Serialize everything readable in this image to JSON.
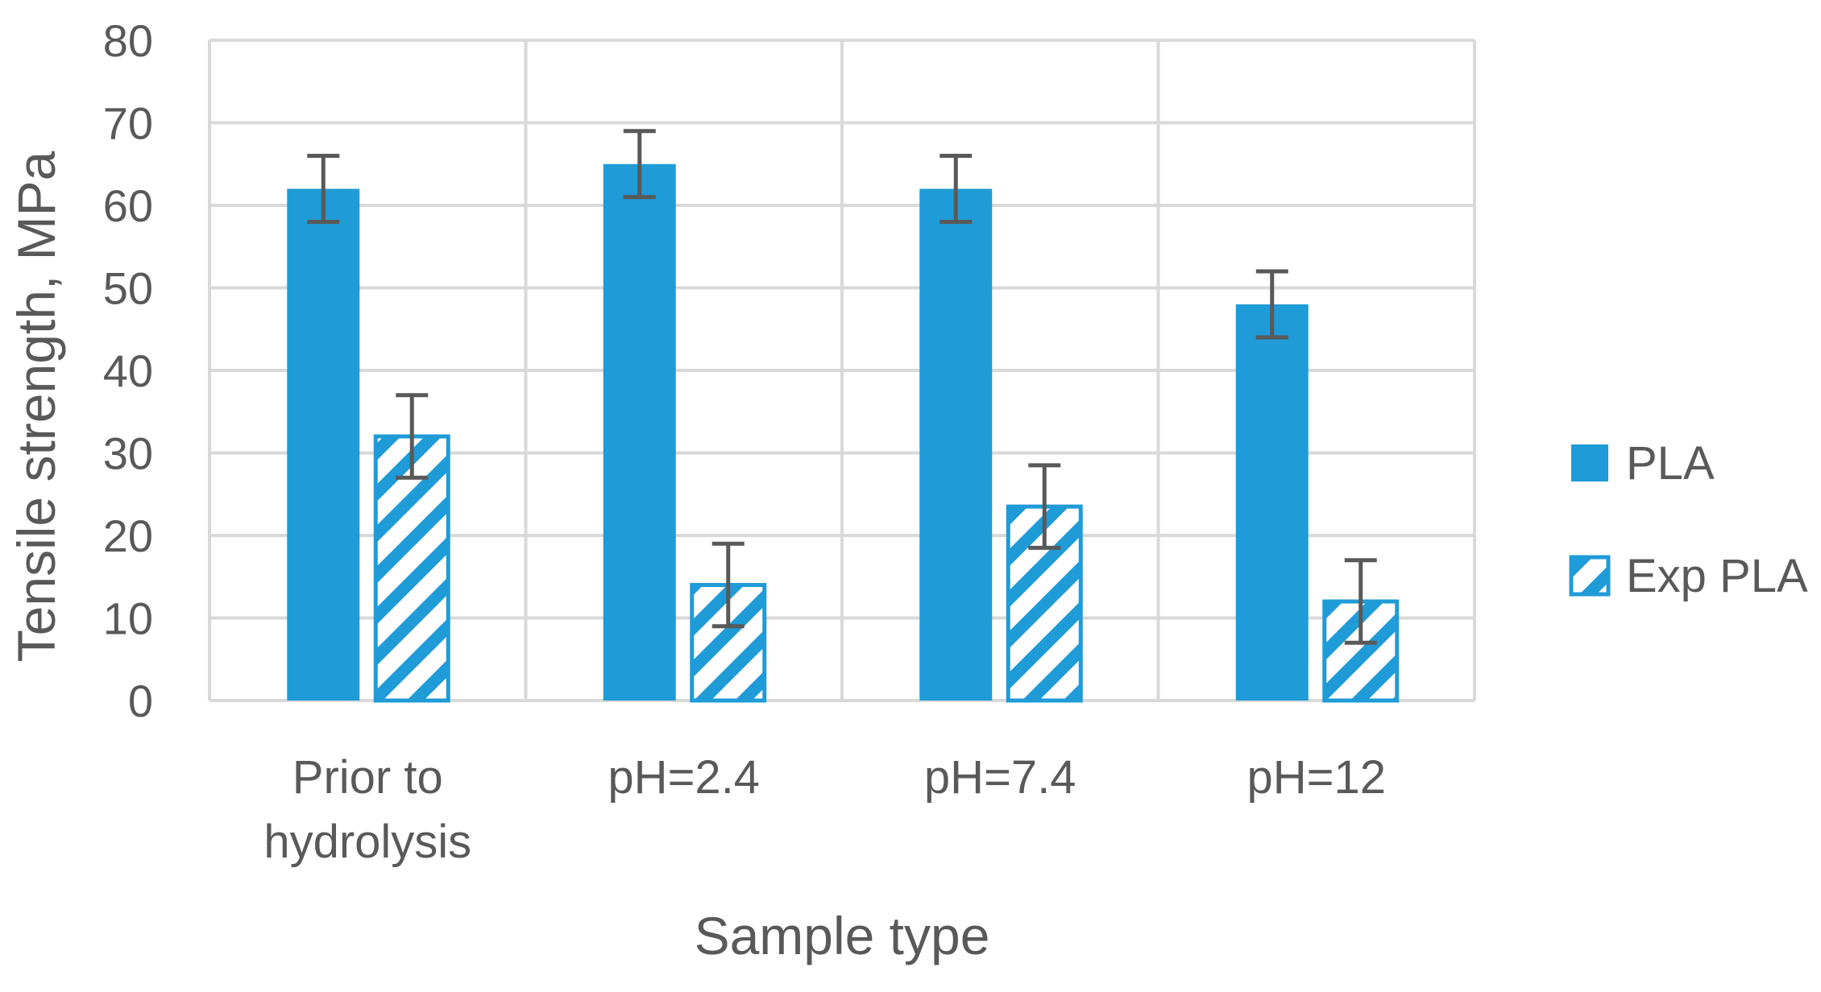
{
  "chart_data": {
    "type": "bar",
    "title": "",
    "xlabel": "Sample type",
    "ylabel": "Tensile strength, MPa",
    "ylim": [
      0,
      80
    ],
    "yticks": [
      0,
      10,
      20,
      30,
      40,
      50,
      60,
      70,
      80
    ],
    "grid": true,
    "legend_position": "right",
    "categories": [
      [
        "Prior to",
        "hydrolysis"
      ],
      [
        "pH=2.4"
      ],
      [
        "pH=7.4"
      ],
      [
        "pH=12"
      ]
    ],
    "series": [
      {
        "name": "PLA",
        "fill": "solid",
        "values": [
          62,
          65,
          62,
          48
        ],
        "errors": [
          4,
          4,
          4,
          4
        ]
      },
      {
        "name": "Exp PLA",
        "fill": "hatched",
        "values": [
          32,
          14,
          23.5,
          12
        ],
        "errors": [
          5,
          5,
          5,
          5
        ]
      }
    ],
    "colors": {
      "bar": "#1f9bd7",
      "error_bar": "#595959",
      "grid": "#d9d9d9",
      "text": "#595959"
    }
  }
}
